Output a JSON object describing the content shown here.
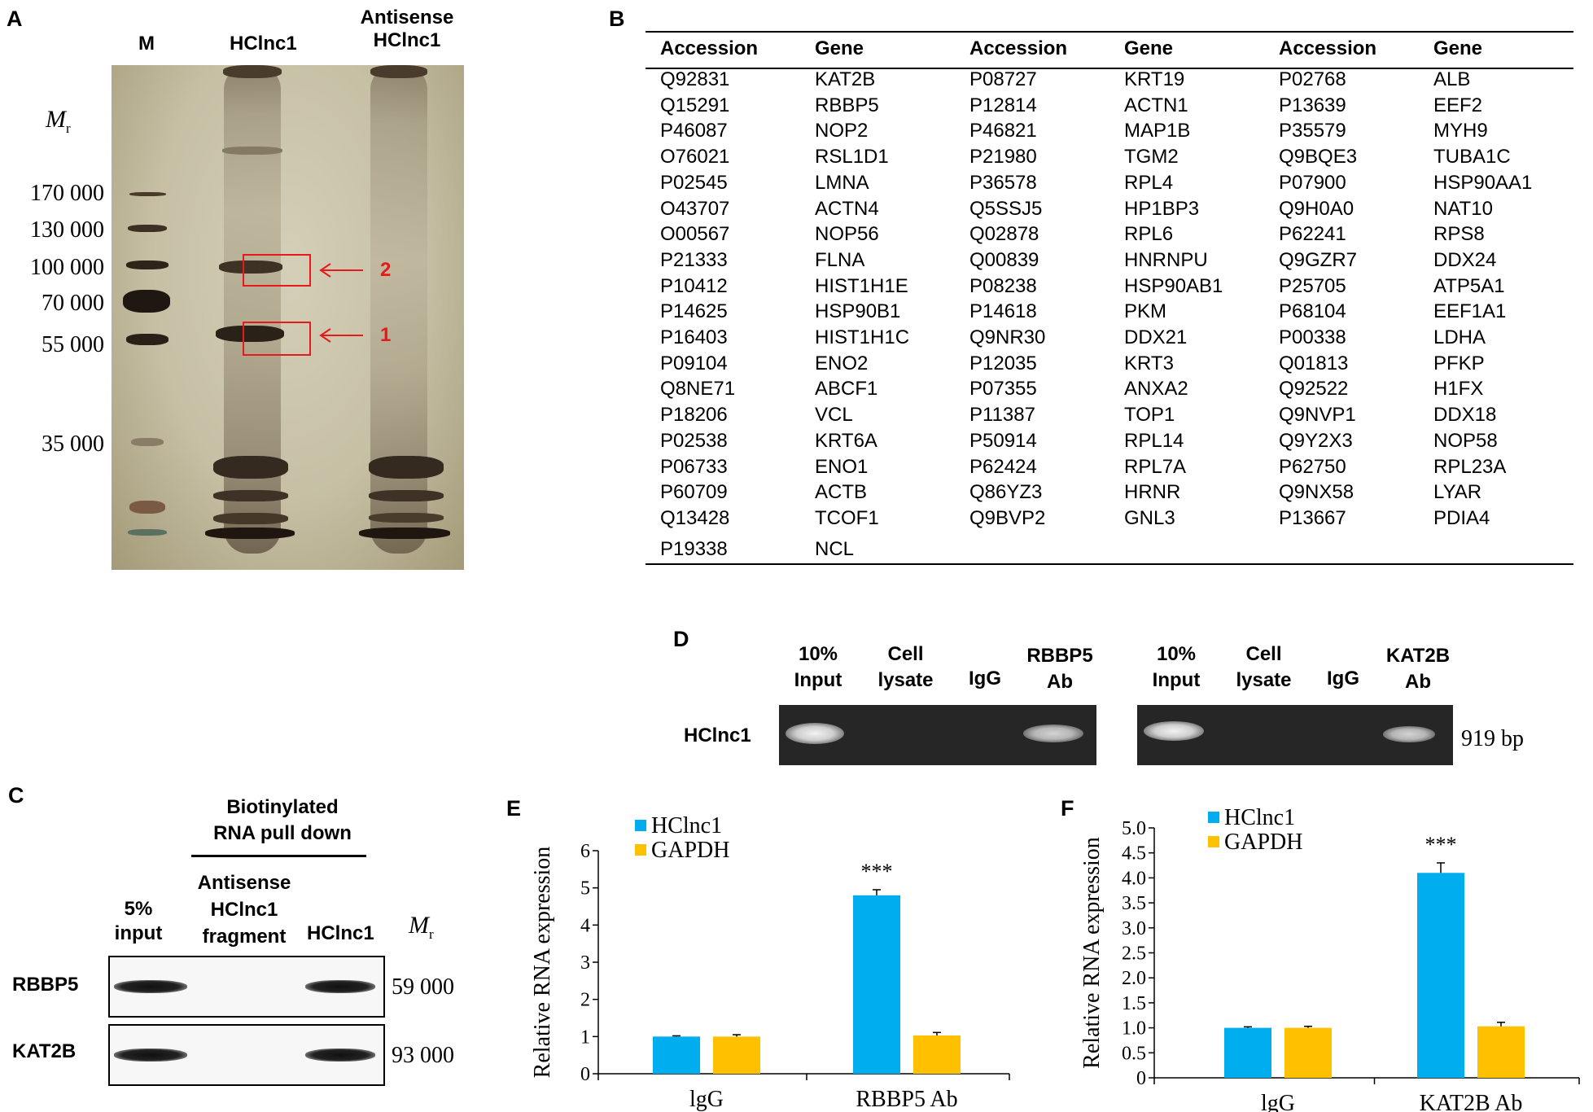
{
  "panelA": {
    "letter": "A",
    "lanes": {
      "m": "M",
      "hc": "HClnc1",
      "as1": "Antisense",
      "as2": "HClnc1"
    },
    "mr_main": "M",
    "mr_sub": "r",
    "markers": [
      "170 000",
      "130 000",
      "100 000",
      "70 000",
      "55 000",
      "35 000"
    ],
    "box1_label": "1",
    "box2_label": "2",
    "highlight_color": "#e8191b"
  },
  "panelB": {
    "letter": "B",
    "headers": [
      "Accession",
      "Gene",
      "Accession",
      "Gene",
      "Accession",
      "Gene"
    ],
    "col1": [
      [
        "Q92831",
        "KAT2B"
      ],
      [
        "Q15291",
        "RBBP5"
      ],
      [
        "P46087",
        "NOP2"
      ],
      [
        "O76021",
        "RSL1D1"
      ],
      [
        "P02545",
        "LMNA"
      ],
      [
        "O43707",
        "ACTN4"
      ],
      [
        "O00567",
        "NOP56"
      ],
      [
        "P21333",
        "FLNA"
      ],
      [
        "P10412",
        "HIST1H1E"
      ],
      [
        "P14625",
        "HSP90B1"
      ],
      [
        "P16403",
        "HIST1H1C"
      ],
      [
        "P09104",
        "ENO2"
      ],
      [
        "Q8NE71",
        "ABCF1"
      ],
      [
        "P18206",
        "VCL"
      ],
      [
        "P02538",
        "KRT6A"
      ],
      [
        "P06733",
        "ENO1"
      ],
      [
        "P60709",
        "ACTB"
      ],
      [
        "Q13428",
        "TCOF1"
      ],
      [
        "P19338",
        "NCL"
      ]
    ],
    "col2": [
      [
        "P08727",
        "KRT19"
      ],
      [
        "P12814",
        "ACTN1"
      ],
      [
        "P46821",
        "MAP1B"
      ],
      [
        "P21980",
        "TGM2"
      ],
      [
        "P36578",
        "RPL4"
      ],
      [
        "Q5SSJ5",
        "HP1BP3"
      ],
      [
        "Q02878",
        "RPL6"
      ],
      [
        "Q00839",
        "HNRNPU"
      ],
      [
        "P08238",
        "HSP90AB1"
      ],
      [
        "P14618",
        "PKM"
      ],
      [
        "Q9NR30",
        "DDX21"
      ],
      [
        "P12035",
        "KRT3"
      ],
      [
        "P07355",
        "ANXA2"
      ],
      [
        "P11387",
        "TOP1"
      ],
      [
        "P50914",
        "RPL14"
      ],
      [
        "P62424",
        "RPL7A"
      ],
      [
        "Q86YZ3",
        "HRNR"
      ],
      [
        "Q9BVP2",
        "GNL3"
      ]
    ],
    "col3": [
      [
        "P02768",
        "ALB"
      ],
      [
        "P13639",
        "EEF2"
      ],
      [
        "P35579",
        "MYH9"
      ],
      [
        "Q9BQE3",
        "TUBA1C"
      ],
      [
        "P07900",
        "HSP90AA1"
      ],
      [
        "Q9H0A0",
        "NAT10"
      ],
      [
        "P62241",
        "RPS8"
      ],
      [
        "Q9GZR7",
        "DDX24"
      ],
      [
        "P25705",
        "ATP5A1"
      ],
      [
        "P68104",
        "EEF1A1"
      ],
      [
        "P00338",
        "LDHA"
      ],
      [
        "Q01813",
        "PFKP"
      ],
      [
        "Q92522",
        "H1FX"
      ],
      [
        "Q9NVP1",
        "DDX18"
      ],
      [
        "Q9Y2X3",
        "NOP58"
      ],
      [
        "P62750",
        "RPL23A"
      ],
      [
        "Q9NX58",
        "LYAR"
      ],
      [
        "P13667",
        "PDIA4"
      ]
    ]
  },
  "panelC": {
    "letter": "C",
    "bracket_title_1": "Biotinylated",
    "bracket_title_2": "RNA pull down",
    "lane1_1": "5%",
    "lane1_2": "input",
    "lane2_1": "Antisense",
    "lane2_2": "HClnc1",
    "lane2_3": "fragment",
    "lane3": "HClnc1",
    "mr_main": "M",
    "mr_sub": "r",
    "rows": [
      {
        "protein": "RBBP5",
        "mw": "59 000"
      },
      {
        "protein": "KAT2B",
        "mw": "93 000"
      }
    ]
  },
  "panelD": {
    "letter": "D",
    "row_label": "HClnc1",
    "size_label": "919 bp",
    "gel_left": {
      "lanes": [
        [
          "10%",
          "Input"
        ],
        [
          "Cell",
          "lysate"
        ],
        [
          "IgG"
        ],
        [
          "RBBP5",
          "Ab"
        ]
      ]
    },
    "gel_right": {
      "lanes": [
        [
          "10%",
          "Input"
        ],
        [
          "Cell",
          "lysate"
        ],
        [
          "IgG"
        ],
        [
          "KAT2B",
          "Ab"
        ]
      ]
    }
  },
  "panelE": {
    "letter": "E"
  },
  "panelF": {
    "letter": "F"
  },
  "chart_data": [
    {
      "type": "bar",
      "panel": "E",
      "categories": [
        "lgG",
        "RBBP5 Ab"
      ],
      "series": [
        {
          "name": "HClnc1",
          "color": "#00aeef",
          "values": [
            1.0,
            4.8
          ],
          "errors": [
            0.02,
            0.15
          ]
        },
        {
          "name": "GAPDH",
          "color": "#ffc000",
          "values": [
            1.0,
            1.03
          ],
          "errors": [
            0.05,
            0.08
          ]
        }
      ],
      "ylabel": "Relative RNA expression",
      "ylim": [
        0,
        6
      ],
      "yticks": [
        "0",
        "1",
        "2",
        "3",
        "4",
        "5",
        "6"
      ],
      "ytick_values": [
        0,
        1,
        2,
        3,
        4,
        5,
        6
      ],
      "annotation": "***",
      "legend": "top-left",
      "grid": false
    },
    {
      "type": "bar",
      "panel": "F",
      "categories": [
        "lgG",
        "KAT2B Ab"
      ],
      "series": [
        {
          "name": "HClnc1",
          "color": "#00aeef",
          "values": [
            1.0,
            4.1
          ],
          "errors": [
            0.02,
            0.2
          ]
        },
        {
          "name": "GAPDH",
          "color": "#ffc000",
          "values": [
            1.0,
            1.03
          ],
          "errors": [
            0.03,
            0.08
          ]
        }
      ],
      "ylabel": "Relative RNA expression",
      "ylim": [
        0,
        5
      ],
      "yticks": [
        "0",
        "0.5",
        "1.0",
        "1.5",
        "2.0",
        "2.5",
        "3.0",
        "3.5",
        "4.0",
        "4.5",
        "5.0"
      ],
      "ytick_values": [
        0,
        0.5,
        1,
        1.5,
        2,
        2.5,
        3,
        3.5,
        4,
        4.5,
        5
      ],
      "annotation": "***",
      "legend": "top-left",
      "grid": false
    }
  ]
}
